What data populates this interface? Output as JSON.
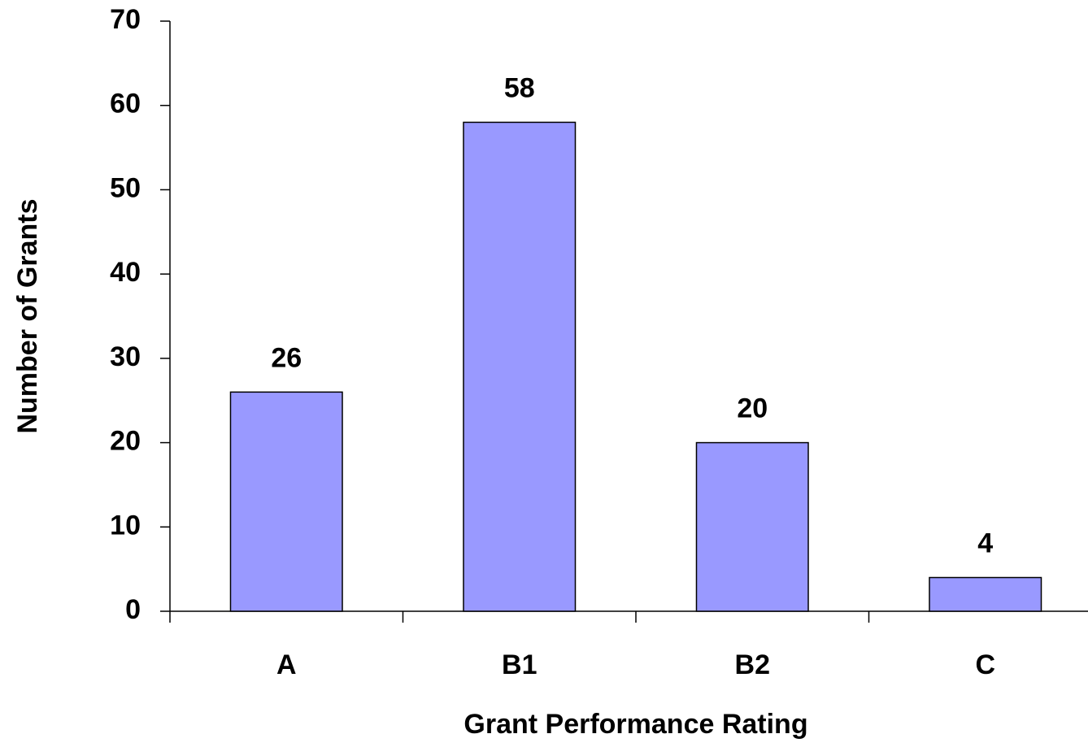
{
  "chart_data": {
    "type": "bar",
    "x_label": "Grant Performance Rating",
    "y_label": "Number of Grants",
    "categories": [
      "A",
      "B1",
      "B2",
      "C"
    ],
    "values": [
      26,
      58,
      20,
      4
    ],
    "color": "#9999ff",
    "ylim": [
      0,
      70
    ],
    "yticks": [
      0,
      10,
      20,
      30,
      40,
      50,
      60,
      70
    ]
  }
}
